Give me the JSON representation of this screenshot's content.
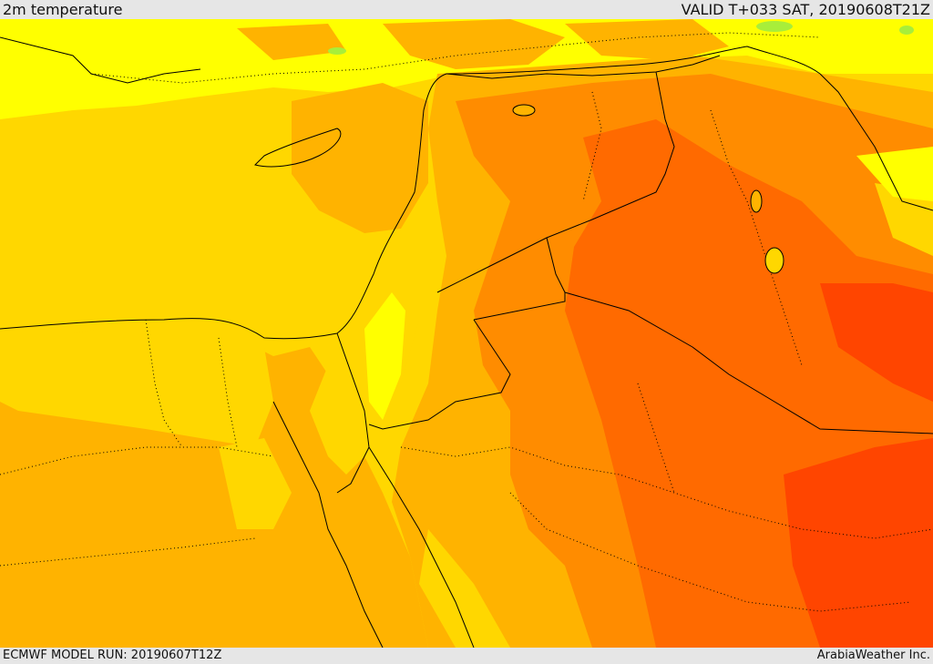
{
  "header": {
    "title": "2m temperature",
    "valid": "VALID T+033 SAT, 20190608T21Z"
  },
  "footer": {
    "model_run": "ECMWF MODEL RUN: 20190607T12Z",
    "credit": "ArabiaWeather Inc."
  },
  "palette": {
    "light_green": "#a8ee3a",
    "yellow": "#ffff00",
    "gold": "#ffd700",
    "amber": "#ffb300",
    "orange": "#ff8c00",
    "dark_orange": "#ff6a00",
    "red_orange": "#ff4500",
    "coastline": "#000000",
    "border_dotted": "#000000"
  }
}
